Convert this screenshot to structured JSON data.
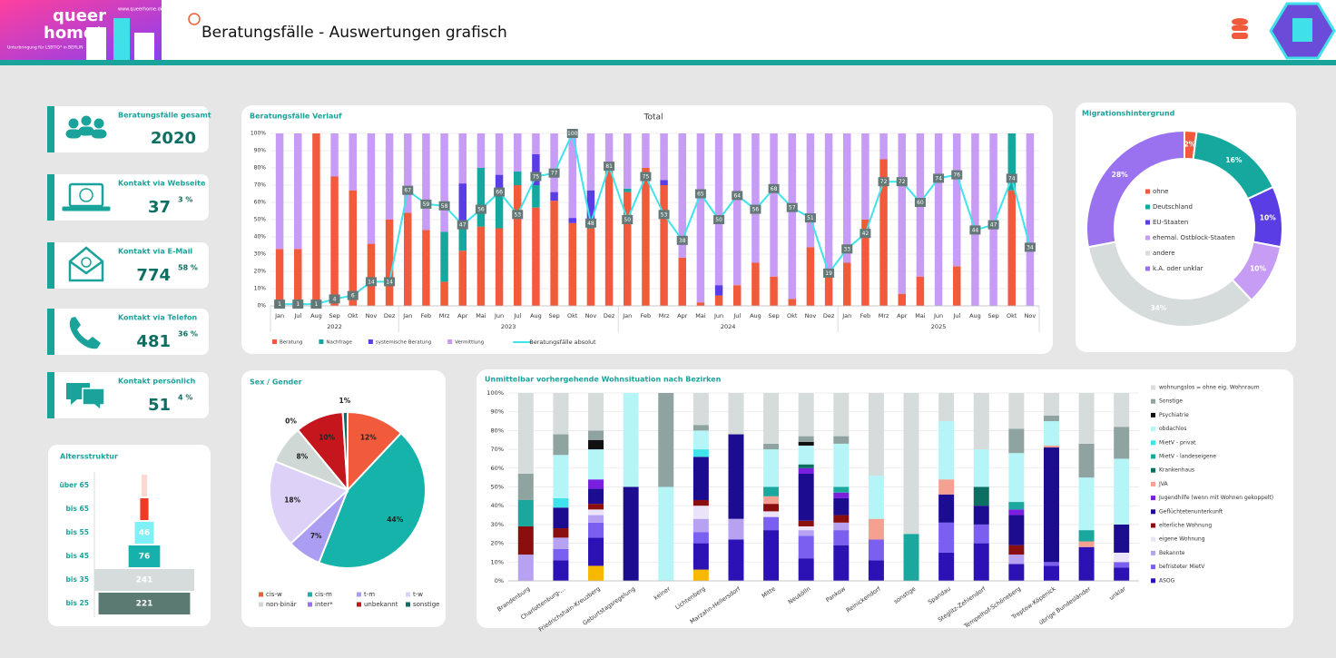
{
  "header": {
    "title": "Beratungsfälle - Auswertungen grafisch",
    "logo_lines": [
      "queer",
      "home*"
    ],
    "logo_url": "www.queerhome.de",
    "logo_tagline": "Unterbringung für LSBTIQ* in BERLIN"
  },
  "kpis": [
    {
      "label": "Beratungsfälle gesamt",
      "value": 2020
    },
    {
      "label": "Kontakt via Webseite",
      "value": 37,
      "share": "3 %"
    },
    {
      "label": "Kontakt via E-Mail",
      "value": 774,
      "share": "58 %"
    },
    {
      "label": "Kontakt via Telefon",
      "value": 481,
      "share": "36 %"
    },
    {
      "label": "Kontakt persönlich",
      "value": 51,
      "share": "4 %"
    }
  ],
  "chart_data": [
    {
      "type": "bar",
      "stacked": true,
      "title": "Beratungsfälle Verlauf",
      "subtitle": "Total",
      "categories": [
        "Jan",
        "Jul",
        "Aug",
        "Sep",
        "Okt",
        "Nov",
        "Dez",
        "Jan",
        "Feb",
        "Mrz",
        "Apr",
        "Mai",
        "Jun",
        "Jul",
        "Aug",
        "Sep",
        "Okt",
        "Nov",
        "Dez",
        "Jan",
        "Feb",
        "Mrz",
        "Apr",
        "Mai",
        "Jun",
        "Jul",
        "Aug",
        "Sep",
        "Okt",
        "Nov",
        "Dez",
        "Jan",
        "Feb",
        "Mrz",
        "Apr",
        "Mai",
        "Jun",
        "Jul",
        "Aug",
        "Sep",
        "Okt",
        "Nov"
      ],
      "x_groups": [
        {
          "label": "2022",
          "size": 7
        },
        {
          "label": "2023",
          "size": 12
        },
        {
          "label": "2024",
          "size": 12
        },
        {
          "label": "2025",
          "size": 11
        }
      ],
      "ylim": [
        0,
        100
      ],
      "yticks": [
        {
          "value": 0,
          "label": "0%"
        },
        {
          "value": 10,
          "label": "10%"
        },
        {
          "value": 20,
          "label": "20%"
        },
        {
          "value": 30,
          "label": "30%"
        },
        {
          "value": 40,
          "label": "40%"
        },
        {
          "value": 50,
          "label": "50%"
        },
        {
          "value": 60,
          "label": "60%"
        },
        {
          "value": 70,
          "label": "70%"
        },
        {
          "value": 80,
          "label": "80%"
        },
        {
          "value": 90,
          "label": "90%"
        },
        {
          "value": 100,
          "label": "100%"
        }
      ],
      "series": [
        {
          "name": "Beratung",
          "color": "#f25a3c",
          "values": [
            33,
            33,
            100,
            75,
            67,
            36,
            50,
            54,
            44,
            14,
            32,
            46,
            45,
            70,
            57,
            61,
            48,
            45,
            78,
            66,
            80,
            70,
            28,
            2,
            6,
            12,
            25,
            17,
            4,
            34,
            21,
            25,
            50,
            85,
            7,
            17,
            0,
            23,
            0,
            0,
            67,
            0
          ]
        },
        {
          "name": "Nachfrage",
          "color": "#16a89f",
          "values": [
            0,
            0,
            0,
            0,
            0,
            0,
            0,
            0,
            0,
            29,
            13,
            34,
            20,
            8,
            13,
            0,
            0,
            5,
            4,
            2,
            0,
            0,
            0,
            0,
            0,
            0,
            0,
            0,
            0,
            0,
            0,
            0,
            0,
            0,
            0,
            0,
            0,
            0,
            0,
            0,
            33,
            0
          ]
        },
        {
          "name": "systemische Beratung",
          "color": "#5b3de6",
          "values": [
            0,
            0,
            0,
            0,
            0,
            0,
            0,
            0,
            0,
            0,
            26,
            0,
            11,
            0,
            18,
            5,
            3,
            17,
            0,
            0,
            0,
            3,
            0,
            0,
            6,
            0,
            0,
            0,
            0,
            0,
            0,
            0,
            0,
            0,
            0,
            0,
            0,
            0,
            0,
            0,
            0,
            0
          ]
        },
        {
          "name": "Vermittlung",
          "color": "#c69cf5",
          "values": [
            67,
            67,
            0,
            25,
            33,
            64,
            50,
            46,
            56,
            57,
            29,
            20,
            24,
            22,
            12,
            34,
            49,
            33,
            18,
            32,
            20,
            27,
            72,
            98,
            88,
            88,
            75,
            83,
            96,
            66,
            79,
            75,
            50,
            15,
            93,
            83,
            100,
            77,
            100,
            100,
            0,
            100
          ]
        },
        {
          "name": "Beratungsfälle absolut",
          "type": "line",
          "color": "#3fe3ea",
          "values": [
            1,
            1,
            1,
            4,
            6,
            14,
            14,
            67,
            59,
            58,
            47,
            56,
            66,
            53,
            75,
            77,
            100,
            48,
            81,
            50,
            75,
            53,
            38,
            65,
            50,
            64,
            56,
            68,
            57,
            51,
            19,
            33,
            42,
            72,
            72,
            60,
            74,
            76,
            44,
            47,
            74,
            34
          ]
        }
      ]
    },
    {
      "type": "donut",
      "title": "Migrationshintergrund",
      "categories": [
        "ohne",
        "Deutschland",
        "EU-Staaten",
        "ehemal. Ostblock-Staaten",
        "andere",
        "k.A. oder unklar"
      ],
      "values": [
        2,
        16,
        10,
        10,
        34,
        28
      ],
      "value_labels": [
        "2%",
        "16%",
        "10%",
        "10%",
        "34%",
        "28%"
      ],
      "colors": [
        "#f25a3c",
        "#16a89f",
        "#5b3de6",
        "#c69cf5",
        "#d6dcdc",
        "#9a72f0"
      ]
    },
    {
      "type": "pie",
      "title": "Sex / Gender",
      "categories": [
        "cis-w",
        "cis-m",
        "t-m",
        "t-w",
        "non-binär",
        "inter*",
        "unbekannt",
        "sonstige"
      ],
      "values": [
        12,
        44,
        7,
        18,
        8,
        0,
        10,
        1
      ],
      "value_labels": [
        "12%",
        "44%",
        "7%",
        "18%",
        "8%",
        "0%",
        "10%",
        "1%"
      ],
      "colors": [
        "#f25a3c",
        "#16b3ab",
        "#ab9ef2",
        "#ddd1f7",
        "#d0d8d6",
        "#9a72f0",
        "#c4161c",
        "#0d6e62"
      ]
    },
    {
      "type": "funnel",
      "title": "Altersstruktur",
      "categories": [
        "über 65",
        "bis 65",
        "bis 55",
        "bis 45",
        "bis 35",
        "bis 25"
      ],
      "values": [
        13,
        20,
        46,
        76,
        241,
        221
      ],
      "colors": [
        "#fcd8d0",
        "#ef3b24",
        "#7ff0f5",
        "#17b1ad",
        "#d6dcdc",
        "#5b7a72"
      ]
    },
    {
      "type": "bar",
      "stacked": true,
      "title": "Unmittelbar vorhergehende Wohnsituation nach Bezirken",
      "categories": [
        "Brandenburg",
        "Charlottenburg-...",
        "Friedrichshain-Kreuzberg",
        "Geburtstagsregelung",
        "keiner",
        "Lichtenberg",
        "Marzahn-Hellersdorf",
        "Mitte",
        "Neukölln",
        "Pankow",
        "Reinickendorf",
        "sonstige",
        "Spandau",
        "Steglitz-Zehlendorf",
        "Tempelhof-Schöneberg",
        "Treptow-Köpenick",
        "übrige Bundesländer",
        "unklar"
      ],
      "ylim": [
        0,
        100
      ],
      "yticks": [
        {
          "value": 0,
          "label": "0%"
        },
        {
          "value": 10,
          "label": "10%"
        },
        {
          "value": 20,
          "label": "20%"
        },
        {
          "value": 30,
          "label": "30%"
        },
        {
          "value": 40,
          "label": "40%"
        },
        {
          "value": 50,
          "label": "50%"
        },
        {
          "value": 60,
          "label": "60%"
        },
        {
          "value": 70,
          "label": "70%"
        },
        {
          "value": 80,
          "label": "80%"
        },
        {
          "value": 90,
          "label": "90%"
        },
        {
          "value": 100,
          "label": "100%"
        }
      ],
      "series": [
        {
          "name": "wohnungslos = ohne eig. Wohnraum",
          "color": "#d6dcdc",
          "values": [
            43,
            22,
            20,
            0,
            0,
            17,
            22,
            27,
            23,
            23,
            44,
            75,
            15,
            30,
            19,
            12,
            27,
            18
          ]
        },
        {
          "name": "Sonstige",
          "color": "#8fa3a0",
          "values": [
            14,
            11,
            5,
            0,
            50,
            3,
            0,
            3,
            3,
            4,
            0,
            0,
            0,
            0,
            13,
            3,
            18,
            17
          ]
        },
        {
          "name": "Psychiatrie",
          "color": "#111111",
          "values": [
            0,
            0,
            5,
            0,
            0,
            0,
            0,
            0,
            2,
            0,
            0,
            0,
            0,
            0,
            0,
            0,
            0,
            0
          ]
        },
        {
          "name": "obdachlos",
          "color": "#b5f5f7",
          "values": [
            0,
            23,
            16,
            50,
            50,
            10,
            0,
            20,
            10,
            23,
            23,
            0,
            31,
            20,
            26,
            13,
            28,
            35
          ]
        },
        {
          "name": "MietV - privat",
          "color": "#3fe3ea",
          "values": [
            0,
            5,
            0,
            0,
            0,
            4,
            0,
            0,
            0,
            0,
            0,
            0,
            0,
            0,
            0,
            0,
            0,
            0
          ]
        },
        {
          "name": "MietV - landeseigene",
          "color": "#1aa89e",
          "values": [
            14,
            0,
            0,
            0,
            0,
            0,
            0,
            5,
            0,
            3,
            0,
            25,
            0,
            0,
            4,
            0,
            6,
            0
          ]
        },
        {
          "name": "Krankenhaus",
          "color": "#0d6e62",
          "values": [
            0,
            0,
            0,
            0,
            0,
            0,
            0,
            0,
            2,
            0,
            0,
            0,
            0,
            10,
            0,
            0,
            0,
            0
          ]
        },
        {
          "name": "JVA",
          "color": "#f5a090",
          "values": [
            0,
            0,
            0,
            0,
            0,
            0,
            0,
            4,
            0,
            0,
            11,
            0,
            8,
            0,
            0,
            1,
            3,
            0
          ]
        },
        {
          "name": "Jugendhilfe (wenn mit Wohnen gekoppelt)",
          "color": "#7a1fe0",
          "values": [
            0,
            0,
            5,
            0,
            0,
            0,
            0,
            0,
            3,
            3,
            0,
            0,
            0,
            0,
            3,
            0,
            0,
            0
          ]
        },
        {
          "name": "Geflüchtetenunterkunft",
          "color": "#1c0c8f",
          "values": [
            0,
            11,
            8,
            50,
            0,
            23,
            45,
            0,
            25,
            9,
            0,
            0,
            15,
            10,
            16,
            61,
            0,
            15
          ]
        },
        {
          "name": "elterliche Wohnung",
          "color": "#8b0e0e",
          "values": [
            15,
            5,
            3,
            0,
            0,
            3,
            0,
            4,
            3,
            4,
            0,
            0,
            0,
            0,
            5,
            0,
            0,
            0
          ]
        },
        {
          "name": "eigene Wohnung",
          "color": "#ebe3f9",
          "values": [
            0,
            0,
            3,
            0,
            0,
            7,
            0,
            3,
            2,
            0,
            0,
            0,
            0,
            0,
            0,
            0,
            0,
            5
          ]
        },
        {
          "name": "Bekannte",
          "color": "#b6a2f0",
          "values": [
            14,
            6,
            4,
            0,
            0,
            7,
            11,
            0,
            3,
            4,
            0,
            0,
            0,
            0,
            5,
            0,
            0,
            0
          ]
        },
        {
          "name": "befristeter MietV",
          "color": "#7a5ff0",
          "values": [
            0,
            6,
            8,
            0,
            0,
            6,
            0,
            7,
            12,
            8,
            11,
            0,
            16,
            10,
            0,
            2,
            0,
            3
          ]
        },
        {
          "name": "ASOG",
          "color": "#2c12b4",
          "values": [
            0,
            11,
            15,
            0,
            0,
            14,
            22,
            27,
            12,
            19,
            11,
            0,
            15,
            20,
            9,
            8,
            18,
            7
          ]
        },
        {
          "name": null,
          "color": "#f7b800",
          "values": [
            0,
            0,
            8,
            0,
            0,
            6,
            0,
            0,
            0,
            0,
            0,
            0,
            0,
            0,
            0,
            0,
            0,
            0
          ]
        }
      ]
    }
  ]
}
